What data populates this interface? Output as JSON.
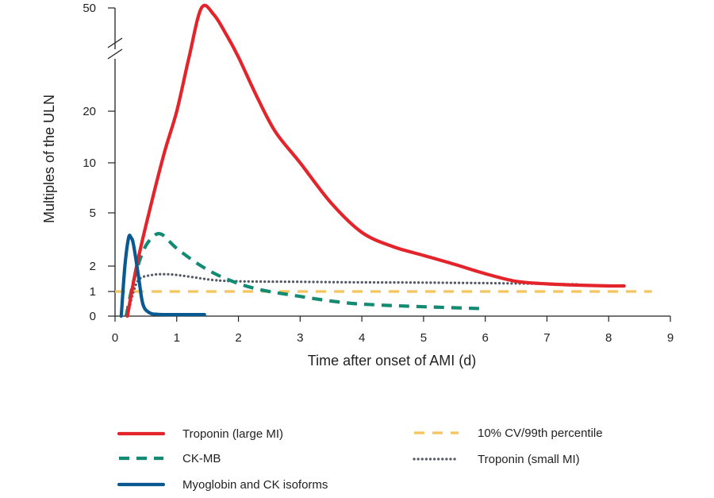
{
  "chart_data": {
    "type": "line",
    "title": "",
    "xlabel": "Time after onset of AMI (d)",
    "ylabel": "Multiples of the ULN",
    "xlim": [
      0,
      9
    ],
    "x_ticks": [
      "0",
      "1",
      "2",
      "3",
      "4",
      "5",
      "6",
      "7",
      "8",
      "9"
    ],
    "y_ticks": [
      "0",
      "1",
      "2",
      "5",
      "10",
      "20",
      "50"
    ],
    "y_axis_break": "between 20 and 50",
    "grid": false,
    "legend_position": "bottom",
    "colors": {
      "troponin_large": "#e3242b",
      "ck_mb": "#138a72",
      "myoglobin": "#0a5a91",
      "reference": "#f7c35c",
      "troponin_small": "#545a66"
    },
    "series": [
      {
        "name": "Troponin (large MI)",
        "style": "solid",
        "color_key": "troponin_large",
        "points": [
          [
            0.2,
            0
          ],
          [
            0.35,
            2
          ],
          [
            0.55,
            5
          ],
          [
            0.8,
            12
          ],
          [
            1.0,
            20
          ],
          [
            1.2,
            35
          ],
          [
            1.4,
            50
          ],
          [
            1.6,
            48
          ],
          [
            1.8,
            42
          ],
          [
            2.0,
            35
          ],
          [
            2.3,
            24
          ],
          [
            2.6,
            16
          ],
          [
            3.0,
            10
          ],
          [
            3.5,
            6
          ],
          [
            4.0,
            3.9
          ],
          [
            4.5,
            3.1
          ],
          [
            5.0,
            2.6
          ],
          [
            5.5,
            2.1
          ],
          [
            6.0,
            1.7
          ],
          [
            6.5,
            1.4
          ],
          [
            7.0,
            1.3
          ],
          [
            7.5,
            1.25
          ],
          [
            8.0,
            1.22
          ],
          [
            8.25,
            1.22
          ]
        ]
      },
      {
        "name": "CK-MB",
        "style": "dashed",
        "color_key": "ck_mb",
        "points": [
          [
            0.18,
            0
          ],
          [
            0.3,
            1.4
          ],
          [
            0.45,
            2.8
          ],
          [
            0.6,
            3.6
          ],
          [
            0.75,
            3.8
          ],
          [
            1.0,
            3.0
          ],
          [
            1.4,
            2.0
          ],
          [
            1.8,
            1.5
          ],
          [
            2.3,
            1.1
          ],
          [
            3.0,
            0.8
          ],
          [
            3.7,
            0.55
          ],
          [
            4.3,
            0.45
          ],
          [
            5.0,
            0.38
          ],
          [
            6.0,
            0.3
          ]
        ]
      },
      {
        "name": "Myoglobin and CK isoforms",
        "style": "solid",
        "color_key": "myoglobin",
        "points": [
          [
            0.1,
            0
          ],
          [
            0.16,
            2.0
          ],
          [
            0.22,
            3.6
          ],
          [
            0.26,
            3.6
          ],
          [
            0.3,
            3.2
          ],
          [
            0.38,
            1.6
          ],
          [
            0.45,
            0.5
          ],
          [
            0.55,
            0.15
          ],
          [
            0.7,
            0.07
          ],
          [
            1.0,
            0.06
          ],
          [
            1.45,
            0.06
          ]
        ]
      },
      {
        "name": "10% CV/99th percentile",
        "style": "long-dash",
        "color_key": "reference",
        "points": [
          [
            0,
            1
          ],
          [
            8.7,
            1
          ]
        ]
      },
      {
        "name": "Troponin (small MI)",
        "style": "dotted",
        "color_key": "troponin_small",
        "points": [
          [
            0.2,
            0
          ],
          [
            0.3,
            1.0
          ],
          [
            0.4,
            1.5
          ],
          [
            0.6,
            1.65
          ],
          [
            0.8,
            1.68
          ],
          [
            1.0,
            1.65
          ],
          [
            1.3,
            1.55
          ],
          [
            1.6,
            1.45
          ],
          [
            2.0,
            1.4
          ],
          [
            3.0,
            1.38
          ],
          [
            4.0,
            1.36
          ],
          [
            5.0,
            1.35
          ],
          [
            6.0,
            1.33
          ],
          [
            7.0,
            1.3
          ],
          [
            7.5,
            1.28
          ]
        ]
      }
    ],
    "legend": [
      {
        "label": "Troponin (large MI)",
        "series": 0
      },
      {
        "label": "10% CV/99th percentile",
        "series": 3
      },
      {
        "label": "CK-MB",
        "series": 1
      },
      {
        "label": "Troponin (small MI)",
        "series": 4
      },
      {
        "label": "Myoglobin and CK isoforms",
        "series": 2
      }
    ]
  }
}
